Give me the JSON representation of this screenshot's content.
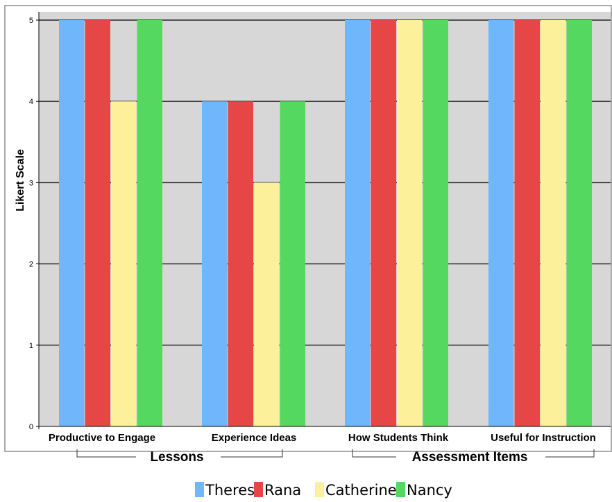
{
  "chart_data": {
    "type": "bar",
    "ylabel": "Likert Scale",
    "ylim": [
      0,
      5
    ],
    "yticks": [
      "0",
      "1",
      "2",
      "3",
      "4",
      "5"
    ],
    "grid": "horizontal",
    "legend_position": "bottom",
    "categories": [
      "Productive to Engage",
      "Experience Ideas",
      "How Students Think",
      "Useful for Instruction"
    ],
    "groups": [
      {
        "label": "Lessons",
        "categories": [
          0,
          1
        ]
      },
      {
        "label": "Assessment Items",
        "categories": [
          2,
          3
        ]
      }
    ],
    "series": [
      {
        "name": "Theresa",
        "color": "#6fb6fb",
        "values": [
          5,
          4,
          5,
          5
        ]
      },
      {
        "name": "Rana",
        "color": "#e64646",
        "values": [
          5,
          4,
          5,
          5
        ]
      },
      {
        "name": "Catherine",
        "color": "#fdf09a",
        "values": [
          4,
          3,
          5,
          5
        ]
      },
      {
        "name": "Nancy",
        "color": "#55d860",
        "values": [
          5,
          4,
          5,
          5
        ]
      }
    ],
    "colors": {
      "plot_background": "#d7d7d7",
      "grid": "#222222",
      "frame": "#555555"
    }
  }
}
